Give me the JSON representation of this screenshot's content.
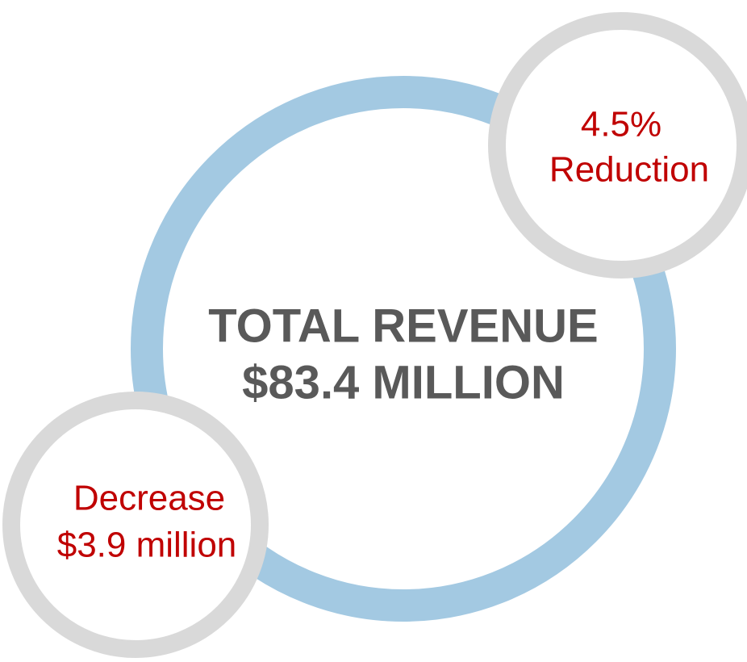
{
  "center": {
    "lines": [
      "TOTAL REVENUE",
      "$83.4 MILLION"
    ]
  },
  "callouts": [
    {
      "lines": [
        "4.5%",
        "Reduction"
      ]
    },
    {
      "lines": [
        "Decrease",
        "$3.9 million"
      ]
    }
  ]
}
